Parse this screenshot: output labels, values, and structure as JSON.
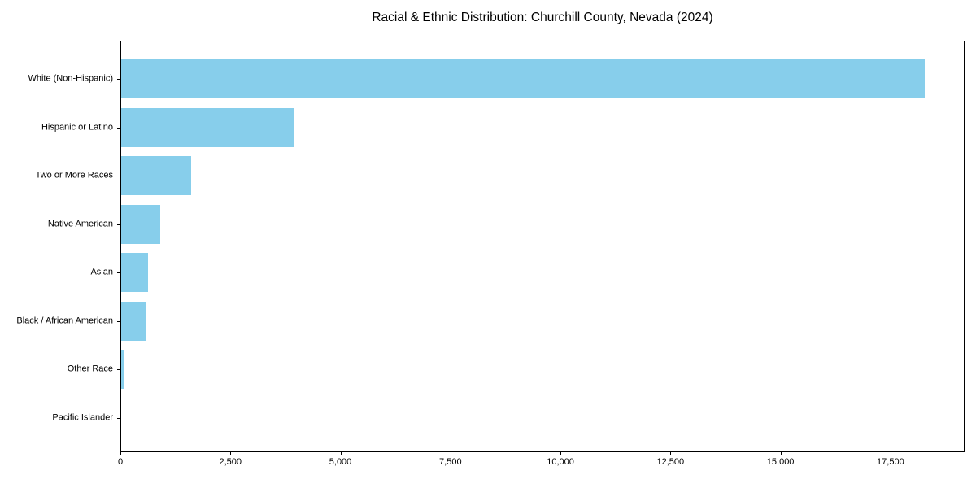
{
  "colors": {
    "bar_fill": "#87CEEB",
    "axis": "#000000",
    "background": "#ffffff",
    "text": "#000000"
  },
  "chart_data": {
    "type": "bar",
    "orientation": "horizontal",
    "title": "Racial & Ethnic Distribution: Churchill County, Nevada (2024)",
    "xlabel": "",
    "ylabel": "",
    "categories": [
      "White (Non-Hispanic)",
      "Hispanic or Latino",
      "Two or More Races",
      "Native American",
      "Asian",
      "Black / African American",
      "Other Race",
      "Pacific Islander"
    ],
    "values": [
      18270,
      3950,
      1610,
      900,
      630,
      570,
      80,
      10
    ],
    "xlim": [
      0,
      19184
    ],
    "x_ticks": [
      0,
      2500,
      5000,
      7500,
      10000,
      12500,
      15000,
      17500
    ],
    "x_tick_labels": [
      "0",
      "2,500",
      "5,000",
      "7,500",
      "10,000",
      "12,500",
      "15,000",
      "17,500"
    ],
    "grid": false,
    "legend": null,
    "bar_color": "#87CEEB"
  }
}
